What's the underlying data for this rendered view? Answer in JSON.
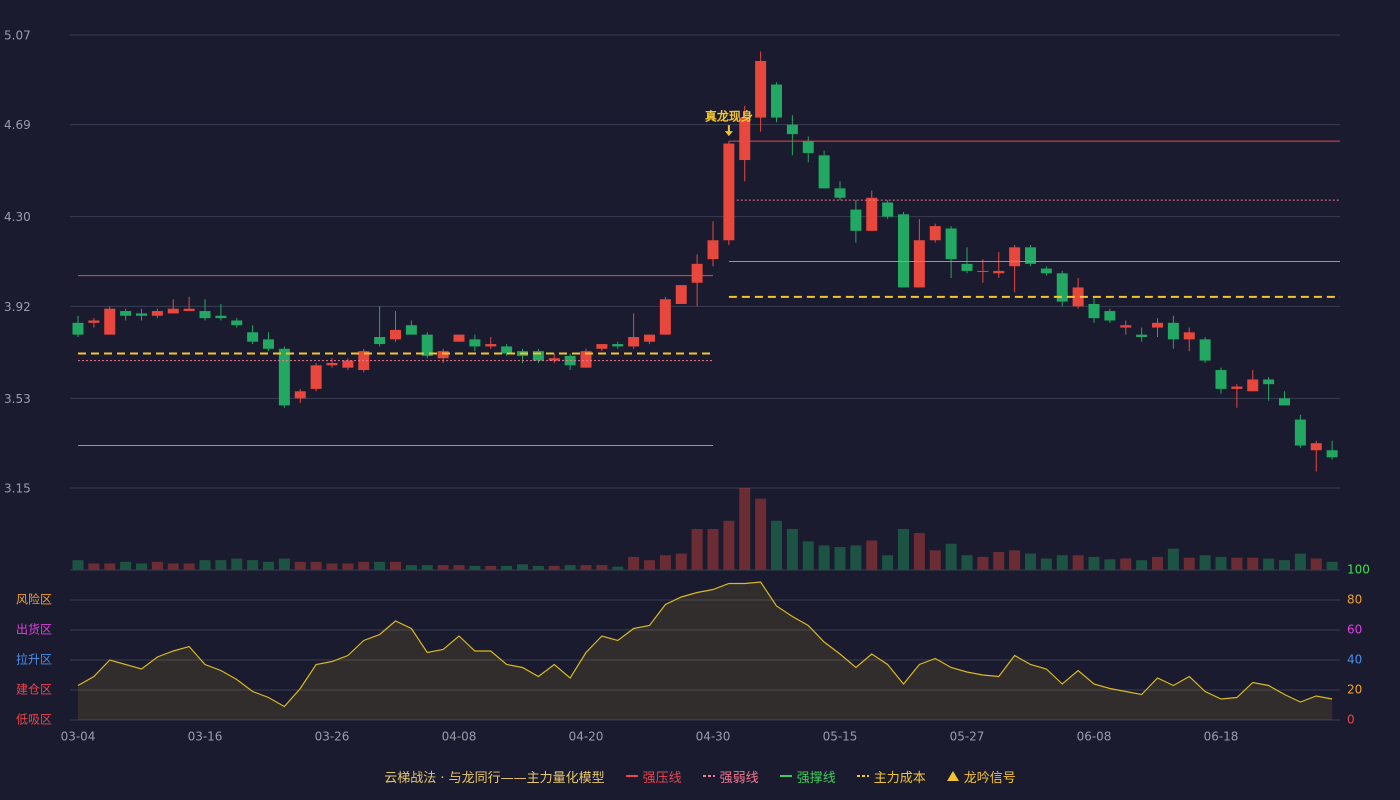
{
  "chart_data": {
    "type": "candlestick",
    "title": "云梯战法 · 与龙同行——主力量化模型",
    "categories": [
      "03-04",
      null,
      null,
      null,
      null,
      null,
      null,
      null,
      "03-16",
      null,
      null,
      null,
      null,
      null,
      null,
      null,
      "03-26",
      null,
      null,
      null,
      null,
      null,
      null,
      null,
      "04-08",
      null,
      null,
      null,
      null,
      null,
      null,
      null,
      "04-20",
      null,
      null,
      null,
      null,
      null,
      null,
      null,
      "04-30",
      null,
      null,
      null,
      null,
      null,
      null,
      null,
      "05-15",
      null,
      null,
      null,
      null,
      null,
      null,
      null,
      "05-27",
      null,
      null,
      null,
      null,
      null,
      null,
      null,
      "06-08",
      null,
      null,
      null,
      null,
      null,
      null,
      null,
      "06-18",
      null,
      null,
      null,
      null,
      null,
      null,
      null
    ],
    "open": [
      3.85,
      3.85,
      3.8,
      3.9,
      3.89,
      3.88,
      3.89,
      3.9,
      3.9,
      3.88,
      3.86,
      3.81,
      3.78,
      3.74,
      3.53,
      3.57,
      3.67,
      3.66,
      3.65,
      3.79,
      3.78,
      3.84,
      3.8,
      3.7,
      3.77,
      3.78,
      3.75,
      3.75,
      3.73,
      3.73,
      3.69,
      3.71,
      3.66,
      3.74,
      3.76,
      3.75,
      3.77,
      3.8,
      3.93,
      4.02,
      4.12,
      4.2,
      4.54,
      4.72,
      4.86,
      4.69,
      4.62,
      4.56,
      4.42,
      4.33,
      4.24,
      4.36,
      4.31,
      4.0,
      4.2,
      4.25,
      4.1,
      4.07,
      4.06,
      4.09,
      4.17,
      4.08,
      4.06,
      3.92,
      3.93,
      3.9,
      3.83,
      3.8,
      3.83,
      3.85,
      3.78,
      3.78,
      3.65,
      3.57,
      3.56,
      3.61,
      3.53,
      3.44,
      3.31,
      3.31
    ],
    "high": [
      3.88,
      3.87,
      3.92,
      3.91,
      3.91,
      3.91,
      3.95,
      3.96,
      3.95,
      3.93,
      3.87,
      3.84,
      3.81,
      3.75,
      3.57,
      3.68,
      3.7,
      3.7,
      3.74,
      3.92,
      3.9,
      3.86,
      3.81,
      3.74,
      3.8,
      3.8,
      3.79,
      3.76,
      3.74,
      3.74,
      3.72,
      3.72,
      3.74,
      3.76,
      3.77,
      3.89,
      3.8,
      3.96,
      4.01,
      4.14,
      4.28,
      4.62,
      4.77,
      5.0,
      4.87,
      4.73,
      4.64,
      4.58,
      4.45,
      4.37,
      4.41,
      4.37,
      4.32,
      4.29,
      4.27,
      4.26,
      4.17,
      4.12,
      4.15,
      4.18,
      4.18,
      4.09,
      4.07,
      4.04,
      3.96,
      3.91,
      3.86,
      3.83,
      3.87,
      3.88,
      3.83,
      3.79,
      3.66,
      3.59,
      3.65,
      3.62,
      3.56,
      3.46,
      3.35,
      3.35
    ],
    "low": [
      3.79,
      3.83,
      3.8,
      3.86,
      3.86,
      3.87,
      3.89,
      3.9,
      3.86,
      3.86,
      3.83,
      3.76,
      3.73,
      3.49,
      3.51,
      3.56,
      3.66,
      3.65,
      3.64,
      3.75,
      3.77,
      3.8,
      3.7,
      3.68,
      3.77,
      3.73,
      3.74,
      3.71,
      3.68,
      3.68,
      3.68,
      3.65,
      3.66,
      3.73,
      3.74,
      3.74,
      3.76,
      3.8,
      3.93,
      3.92,
      4.09,
      4.18,
      4.45,
      4.66,
      4.7,
      4.56,
      4.53,
      4.42,
      4.37,
      4.19,
      4.24,
      4.29,
      4.0,
      4.0,
      4.19,
      4.04,
      4.06,
      4.02,
      4.04,
      3.98,
      4.09,
      4.05,
      3.92,
      3.91,
      3.85,
      3.85,
      3.8,
      3.77,
      3.79,
      3.74,
      3.73,
      3.68,
      3.55,
      3.49,
      3.56,
      3.52,
      3.5,
      3.32,
      3.22,
      3.27
    ],
    "close": [
      3.8,
      3.86,
      3.91,
      3.88,
      3.88,
      3.9,
      3.91,
      3.91,
      3.87,
      3.87,
      3.84,
      3.77,
      3.74,
      3.5,
      3.56,
      3.67,
      3.68,
      3.69,
      3.73,
      3.76,
      3.82,
      3.8,
      3.71,
      3.73,
      3.8,
      3.75,
      3.76,
      3.72,
      3.71,
      3.69,
      3.7,
      3.67,
      3.73,
      3.76,
      3.75,
      3.79,
      3.8,
      3.95,
      4.01,
      4.1,
      4.2,
      4.61,
      4.72,
      4.96,
      4.72,
      4.65,
      4.57,
      4.42,
      4.38,
      4.24,
      4.38,
      4.3,
      4.0,
      4.2,
      4.26,
      4.12,
      4.07,
      4.07,
      4.07,
      4.17,
      4.1,
      4.06,
      3.94,
      4.0,
      3.87,
      3.86,
      3.84,
      3.79,
      3.85,
      3.78,
      3.81,
      3.69,
      3.57,
      3.58,
      3.61,
      3.59,
      3.5,
      3.33,
      3.34,
      3.28
    ],
    "ylim": [
      3.15,
      5.07
    ],
    "yticks": [
      {
        "value": 3.15,
        "label": "3.15"
      },
      {
        "value": 3.53,
        "label": "3.53"
      },
      {
        "value": 3.92,
        "label": "3.92"
      },
      {
        "value": 4.3,
        "label": "4.30"
      },
      {
        "value": 4.69,
        "label": "4.69"
      },
      {
        "value": 5.07,
        "label": "5.07"
      }
    ],
    "grid": true,
    "up_color": "#e8473d",
    "down_color": "#22a862",
    "levels": [
      {
        "name": "强压线",
        "color": "#e8474f",
        "style": "solid",
        "segments": [
          {
            "x": [
              0,
              40
            ],
            "value": 4.05
          },
          {
            "x": [
              41,
              80
            ],
            "value": 4.62
          }
        ]
      },
      {
        "name": "强弱线",
        "color": "#f07890",
        "style": "dotted",
        "segments": [
          {
            "x": [
              0,
              40
            ],
            "value": 3.69
          },
          {
            "x": [
              41.5,
              80
            ],
            "value": 4.37
          }
        ]
      },
      {
        "name": "强撑线",
        "color": "#3ecf5a",
        "style": "solid",
        "segments": [
          {
            "x": [
              0,
              40
            ],
            "value": 3.33
          },
          {
            "x": [
              41,
              80
            ],
            "value": 4.11
          }
        ]
      },
      {
        "name": "主力成本",
        "color": "#f2c530",
        "style": "dashed",
        "segments": [
          {
            "x": [
              0,
              40
            ],
            "value": 3.72
          },
          {
            "x": [
              41,
              80
            ],
            "value": 3.96
          }
        ]
      }
    ],
    "signal": {
      "name": "龙吟信号",
      "label": "真龙现身",
      "index": 41,
      "color": "#f2c530"
    },
    "volume": {
      "ylim": [
        0,
        100
      ],
      "values": [
        12,
        8,
        8,
        10,
        8,
        10,
        8,
        8,
        12,
        12,
        14,
        12,
        10,
        14,
        10,
        10,
        8,
        8,
        10,
        10,
        10,
        6,
        6,
        6,
        6,
        5,
        5,
        5,
        7,
        5,
        5,
        6,
        6,
        6,
        4,
        16,
        12,
        18,
        20,
        50,
        50,
        60,
        100,
        87,
        60,
        50,
        35,
        30,
        28,
        30,
        36,
        18,
        50,
        45,
        24,
        32,
        18,
        16,
        22,
        24,
        20,
        14,
        18,
        18,
        16,
        13,
        14,
        12,
        16,
        26,
        15,
        18,
        16,
        15,
        15,
        14,
        12,
        20,
        14,
        10
      ]
    },
    "oscillator": {
      "color": "#d9b820",
      "ylim": [
        0,
        100
      ],
      "yticks": [
        0,
        20,
        40,
        60,
        80,
        100
      ],
      "ytick_colors": [
        "#e8474f",
        "#f0a030",
        "#4a8fe8",
        "#e040e0",
        "#f0a030",
        "#3ee04a"
      ],
      "zones": [
        {
          "label": "风险区",
          "value": 80,
          "color": "#f0a030"
        },
        {
          "label": "出货区",
          "value": 60,
          "color": "#e040e0"
        },
        {
          "label": "拉升区",
          "value": 40,
          "color": "#4a8fe8"
        },
        {
          "label": "建仓区",
          "value": 20,
          "color": "#e8474f"
        },
        {
          "label": "低吸区",
          "value": 0,
          "color": "#e8474f"
        }
      ],
      "values": [
        23,
        29,
        40,
        37,
        34,
        42,
        46,
        49,
        37,
        33,
        27,
        19,
        15,
        9,
        21,
        37,
        39,
        43,
        53,
        57,
        66,
        61,
        45,
        47,
        56,
        46,
        46,
        37,
        35,
        29,
        37,
        28,
        45,
        56,
        53,
        61,
        63,
        77,
        82,
        85,
        87,
        91,
        91,
        92,
        76,
        69,
        63,
        52,
        44,
        35,
        44,
        37,
        24,
        37,
        41,
        35,
        32,
        30,
        29,
        43,
        37,
        34,
        24,
        33,
        24,
        21,
        19,
        17,
        28,
        23,
        29,
        19,
        14,
        15,
        25,
        23,
        17,
        12,
        16,
        14
      ]
    }
  }
}
